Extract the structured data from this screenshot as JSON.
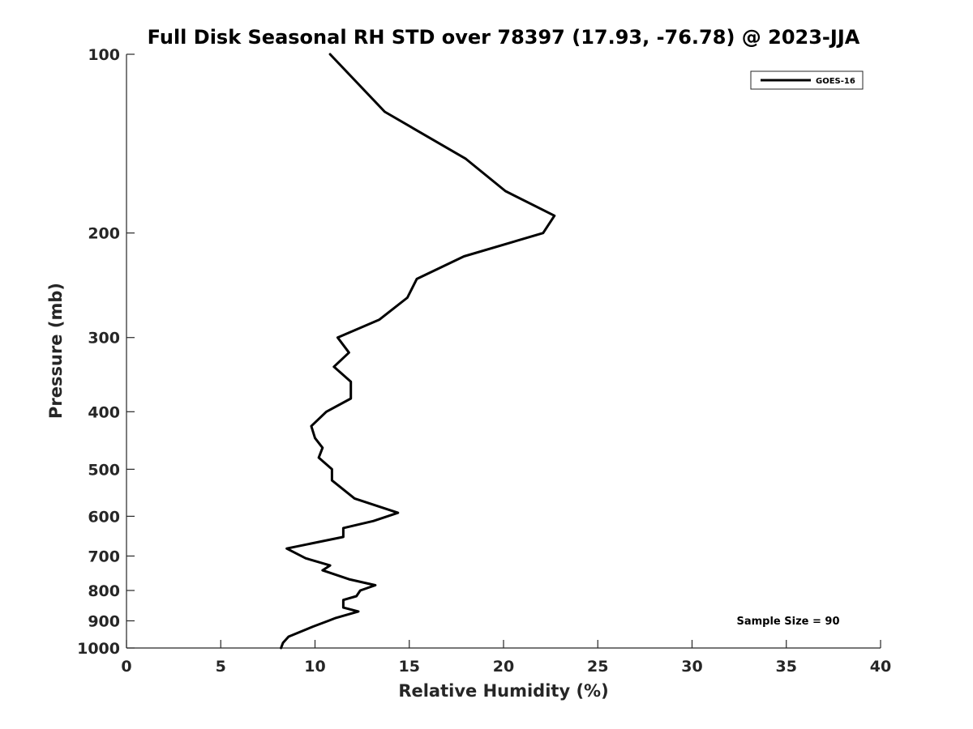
{
  "chart_data": {
    "type": "line",
    "title": "Full Disk Seasonal RH STD over 78397 (17.93, -76.78) @ 2023-JJA",
    "xlabel": "Relative Humidity (%)",
    "ylabel": "Pressure (mb)",
    "xlim": [
      0,
      40
    ],
    "ylim": [
      100,
      1000
    ],
    "yscale": "log",
    "y_reversed": true,
    "grid": false,
    "legend_position": "top-right",
    "x_ticks": [
      "0",
      "5",
      "10",
      "15",
      "20",
      "25",
      "30",
      "35",
      "40"
    ],
    "x_tick_values": [
      0,
      5,
      10,
      15,
      20,
      25,
      30,
      35,
      40
    ],
    "y_ticks": [
      "100",
      "200",
      "300",
      "400",
      "500",
      "600",
      "700",
      "800",
      "900",
      "1000"
    ],
    "y_tick_values": [
      100,
      200,
      300,
      400,
      500,
      600,
      700,
      800,
      900,
      1000
    ],
    "series": [
      {
        "name": "GOES-16",
        "color": "#000000",
        "points": [
          [
            10.8,
            100
          ],
          [
            13.7,
            125
          ],
          [
            18.0,
            150
          ],
          [
            20.1,
            170
          ],
          [
            22.7,
            187
          ],
          [
            22.1,
            200
          ],
          [
            17.9,
            219
          ],
          [
            15.4,
            239
          ],
          [
            14.9,
            257
          ],
          [
            13.4,
            280
          ],
          [
            11.2,
            300
          ],
          [
            11.8,
            318
          ],
          [
            11.0,
            336
          ],
          [
            11.9,
            356
          ],
          [
            11.9,
            380
          ],
          [
            10.6,
            400
          ],
          [
            9.8,
            423
          ],
          [
            10.0,
            443
          ],
          [
            10.4,
            460
          ],
          [
            10.2,
            478
          ],
          [
            10.9,
            500
          ],
          [
            10.9,
            522
          ],
          [
            12.1,
            560
          ],
          [
            14.4,
            592
          ],
          [
            13.1,
            611
          ],
          [
            11.5,
            628
          ],
          [
            11.5,
            650
          ],
          [
            8.5,
            680
          ],
          [
            9.5,
            706
          ],
          [
            10.8,
            726
          ],
          [
            10.4,
            740
          ],
          [
            11.8,
            766
          ],
          [
            13.2,
            784
          ],
          [
            12.4,
            800
          ],
          [
            12.2,
            818
          ],
          [
            11.5,
            830
          ],
          [
            11.5,
            855
          ],
          [
            12.3,
            868
          ],
          [
            11.1,
            890
          ],
          [
            10.7,
            900
          ],
          [
            9.9,
            920
          ],
          [
            8.6,
            957
          ],
          [
            8.3,
            980
          ],
          [
            8.2,
            1000
          ]
        ]
      }
    ],
    "annotations": [
      "Sample Size = 90"
    ]
  }
}
